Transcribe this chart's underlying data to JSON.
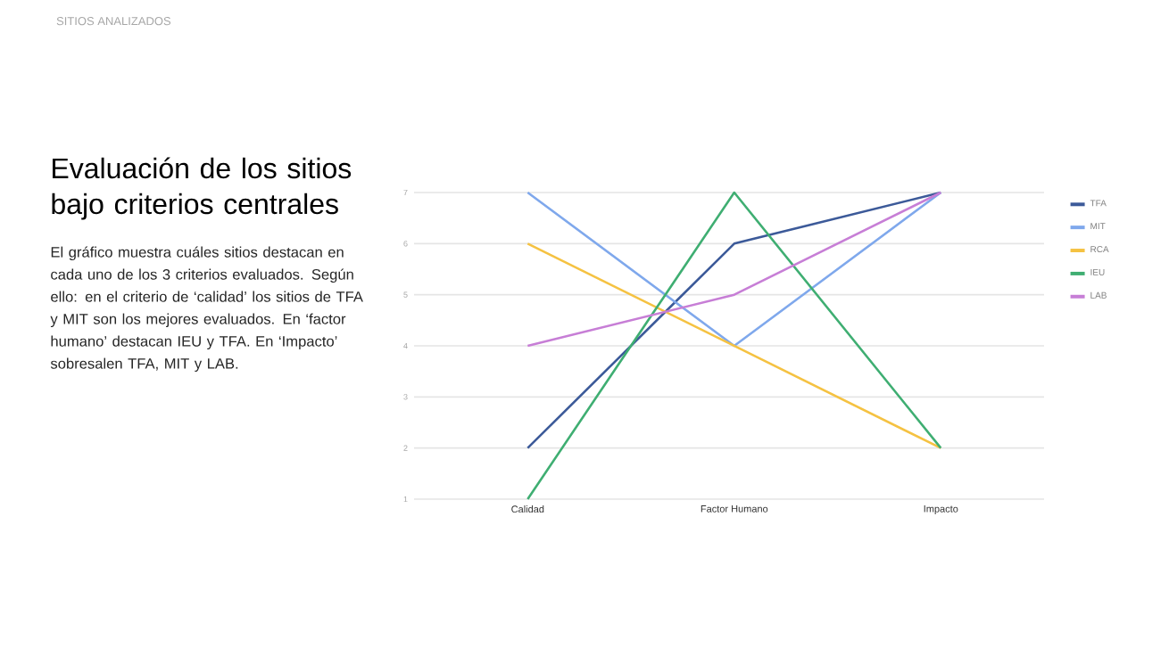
{
  "chart_data": {
    "type": "line",
    "title": "Evaluación de los sitios bajo criterios centrales",
    "subtitle": "El gráfico muestra cuáles sitios destacan en cada uno de los 3 criterios evaluados. Según ello: en el criterio de ‘calidad’ los sitios de TFA y MIT son los mejores evaluados. En ‘factor humano’ destacan IEU y TFA. En ‘Impacto’ sobresalen TFA, MIT y LAB.",
    "annotations": [
      "SITIOS ANALIZADOS"
    ],
    "categories": [
      "Calidad",
      "Factor Humano",
      "Impacto"
    ],
    "series": [
      {
        "name": "TFA",
        "color": "#3c5a99",
        "values": [
          2,
          6,
          7
        ]
      },
      {
        "name": "MIT",
        "color": "#7fa8ec",
        "values": [
          7,
          4,
          7
        ]
      },
      {
        "name": "RCA",
        "color": "#f5c242",
        "values": [
          6,
          4,
          2
        ]
      },
      {
        "name": "IEU",
        "color": "#3fae72",
        "values": [
          1,
          7,
          2
        ]
      },
      {
        "name": "LAB",
        "color": "#c77ed6",
        "values": [
          4,
          5,
          7
        ]
      }
    ],
    "ylim": [
      1,
      7
    ],
    "yticks": [
      1,
      2,
      3,
      4,
      5,
      6,
      7
    ],
    "grid": "y",
    "legend": "right",
    "marker": "none",
    "line_style": "solid"
  }
}
